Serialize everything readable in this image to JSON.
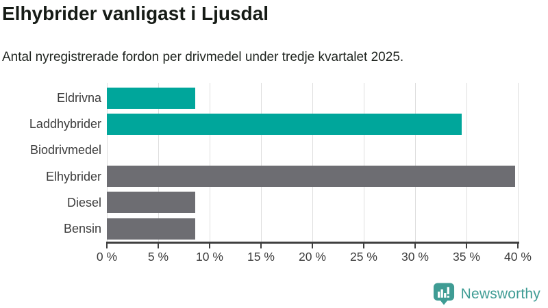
{
  "header": {
    "title": "Elhybrider vanligast i Ljusdal",
    "subtitle": "Antal nyregistrerade fordon per drivmedel under tredje kvartalet 2025."
  },
  "chart_data": {
    "type": "bar",
    "orientation": "horizontal",
    "title": "Elhybrider vanligast i Ljusdal",
    "subtitle": "Antal nyregistrerade fordon per drivmedel under tredje kvartalet 2025.",
    "categories": [
      "Eldrivna",
      "Laddhybrider",
      "Biodrivmedel",
      "Elhybrider",
      "Diesel",
      "Bensin"
    ],
    "values": [
      8.6,
      34.5,
      0,
      39.7,
      8.6,
      8.6
    ],
    "bar_colors": [
      "#00a69b",
      "#00a69b",
      "#6d6d72",
      "#6d6d72",
      "#6d6d72",
      "#6d6d72"
    ],
    "xlabel": "",
    "ylabel": "",
    "xlim": [
      0,
      40
    ],
    "xticks": [
      0,
      5,
      10,
      15,
      20,
      25,
      30,
      35,
      40
    ],
    "xtick_labels": [
      "0 %",
      "5 %",
      "10 %",
      "15 %",
      "20 %",
      "25 %",
      "30 %",
      "35 %",
      "40 %"
    ],
    "grid": "vertical",
    "legend": "none",
    "colors": {
      "highlight": "#00a69b",
      "neutral": "#6d6d72",
      "gridline": "#dedede",
      "axis": "#3f3f3f"
    }
  },
  "branding": {
    "logo_text": "Newsworthy",
    "logo_icon": "newsworthy-bar-chart-speech-bubble-icon",
    "logo_color": "#3f9c94"
  }
}
